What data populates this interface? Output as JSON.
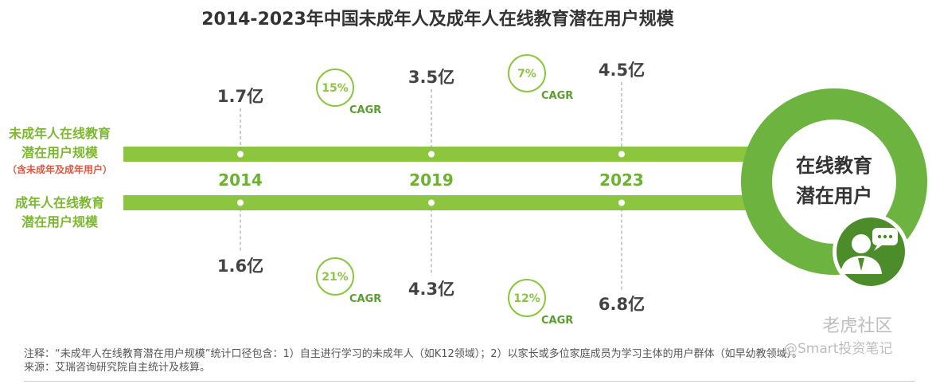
{
  "chart_data": {
    "type": "timeline",
    "title": "2014-2023年中国未成年人及成年人在线教育潜在用户规模",
    "categories": [
      "2014",
      "2019",
      "2023"
    ],
    "series": [
      {
        "name": "未成年人在线教育潜在用户规模",
        "note": "（含未成年及成年用户）",
        "values": [
          1.7,
          3.5,
          4.5
        ],
        "labels": [
          "1.7亿",
          "3.5亿",
          "4.5亿"
        ],
        "cagr": [
          {
            "period": "2014-2019",
            "value": "15%"
          },
          {
            "period": "2019-2023",
            "value": "7%"
          }
        ]
      },
      {
        "name": "成年人在线教育潜在用户规模",
        "values": [
          1.6,
          4.3,
          6.8
        ],
        "labels": [
          "1.6亿",
          "4.3亿",
          "6.8亿"
        ],
        "cagr": [
          {
            "period": "2014-2019",
            "value": "21%"
          },
          {
            "period": "2019-2023",
            "value": "12%"
          }
        ]
      }
    ],
    "unit": "亿",
    "cagr_label": "CAGR"
  },
  "labels": {
    "row1_line1": "未成年人在线教育",
    "row1_line2": "潜在用户规模",
    "row1_note": "（含未成年及成年用户）",
    "row2_line1": "成年人在线教育",
    "row2_line2": "潜在用户规模",
    "circle_line1": "在线教育",
    "circle_line2": "潜在用户"
  },
  "footnote": {
    "note": "注释：“未成年人在线教育潜在用户规模”统计口径包含：1）自主进行学习的未成年人（如K12领域）；2）以家长或多位家庭成员为学习主体的用户群体（如早幼教领域）。",
    "source": "来源：艾瑞咨询研究院自主统计及核算。"
  },
  "watermark": {
    "line1": "老虎社区",
    "line2": "@Smart投资笔记"
  },
  "colors": {
    "green": "#8cc63f",
    "dark_green": "#5a9e2f",
    "year_green": "#6ab42d",
    "label_green": "#7cb82f",
    "note_red": "#e2553f",
    "text_dark": "#444444"
  }
}
